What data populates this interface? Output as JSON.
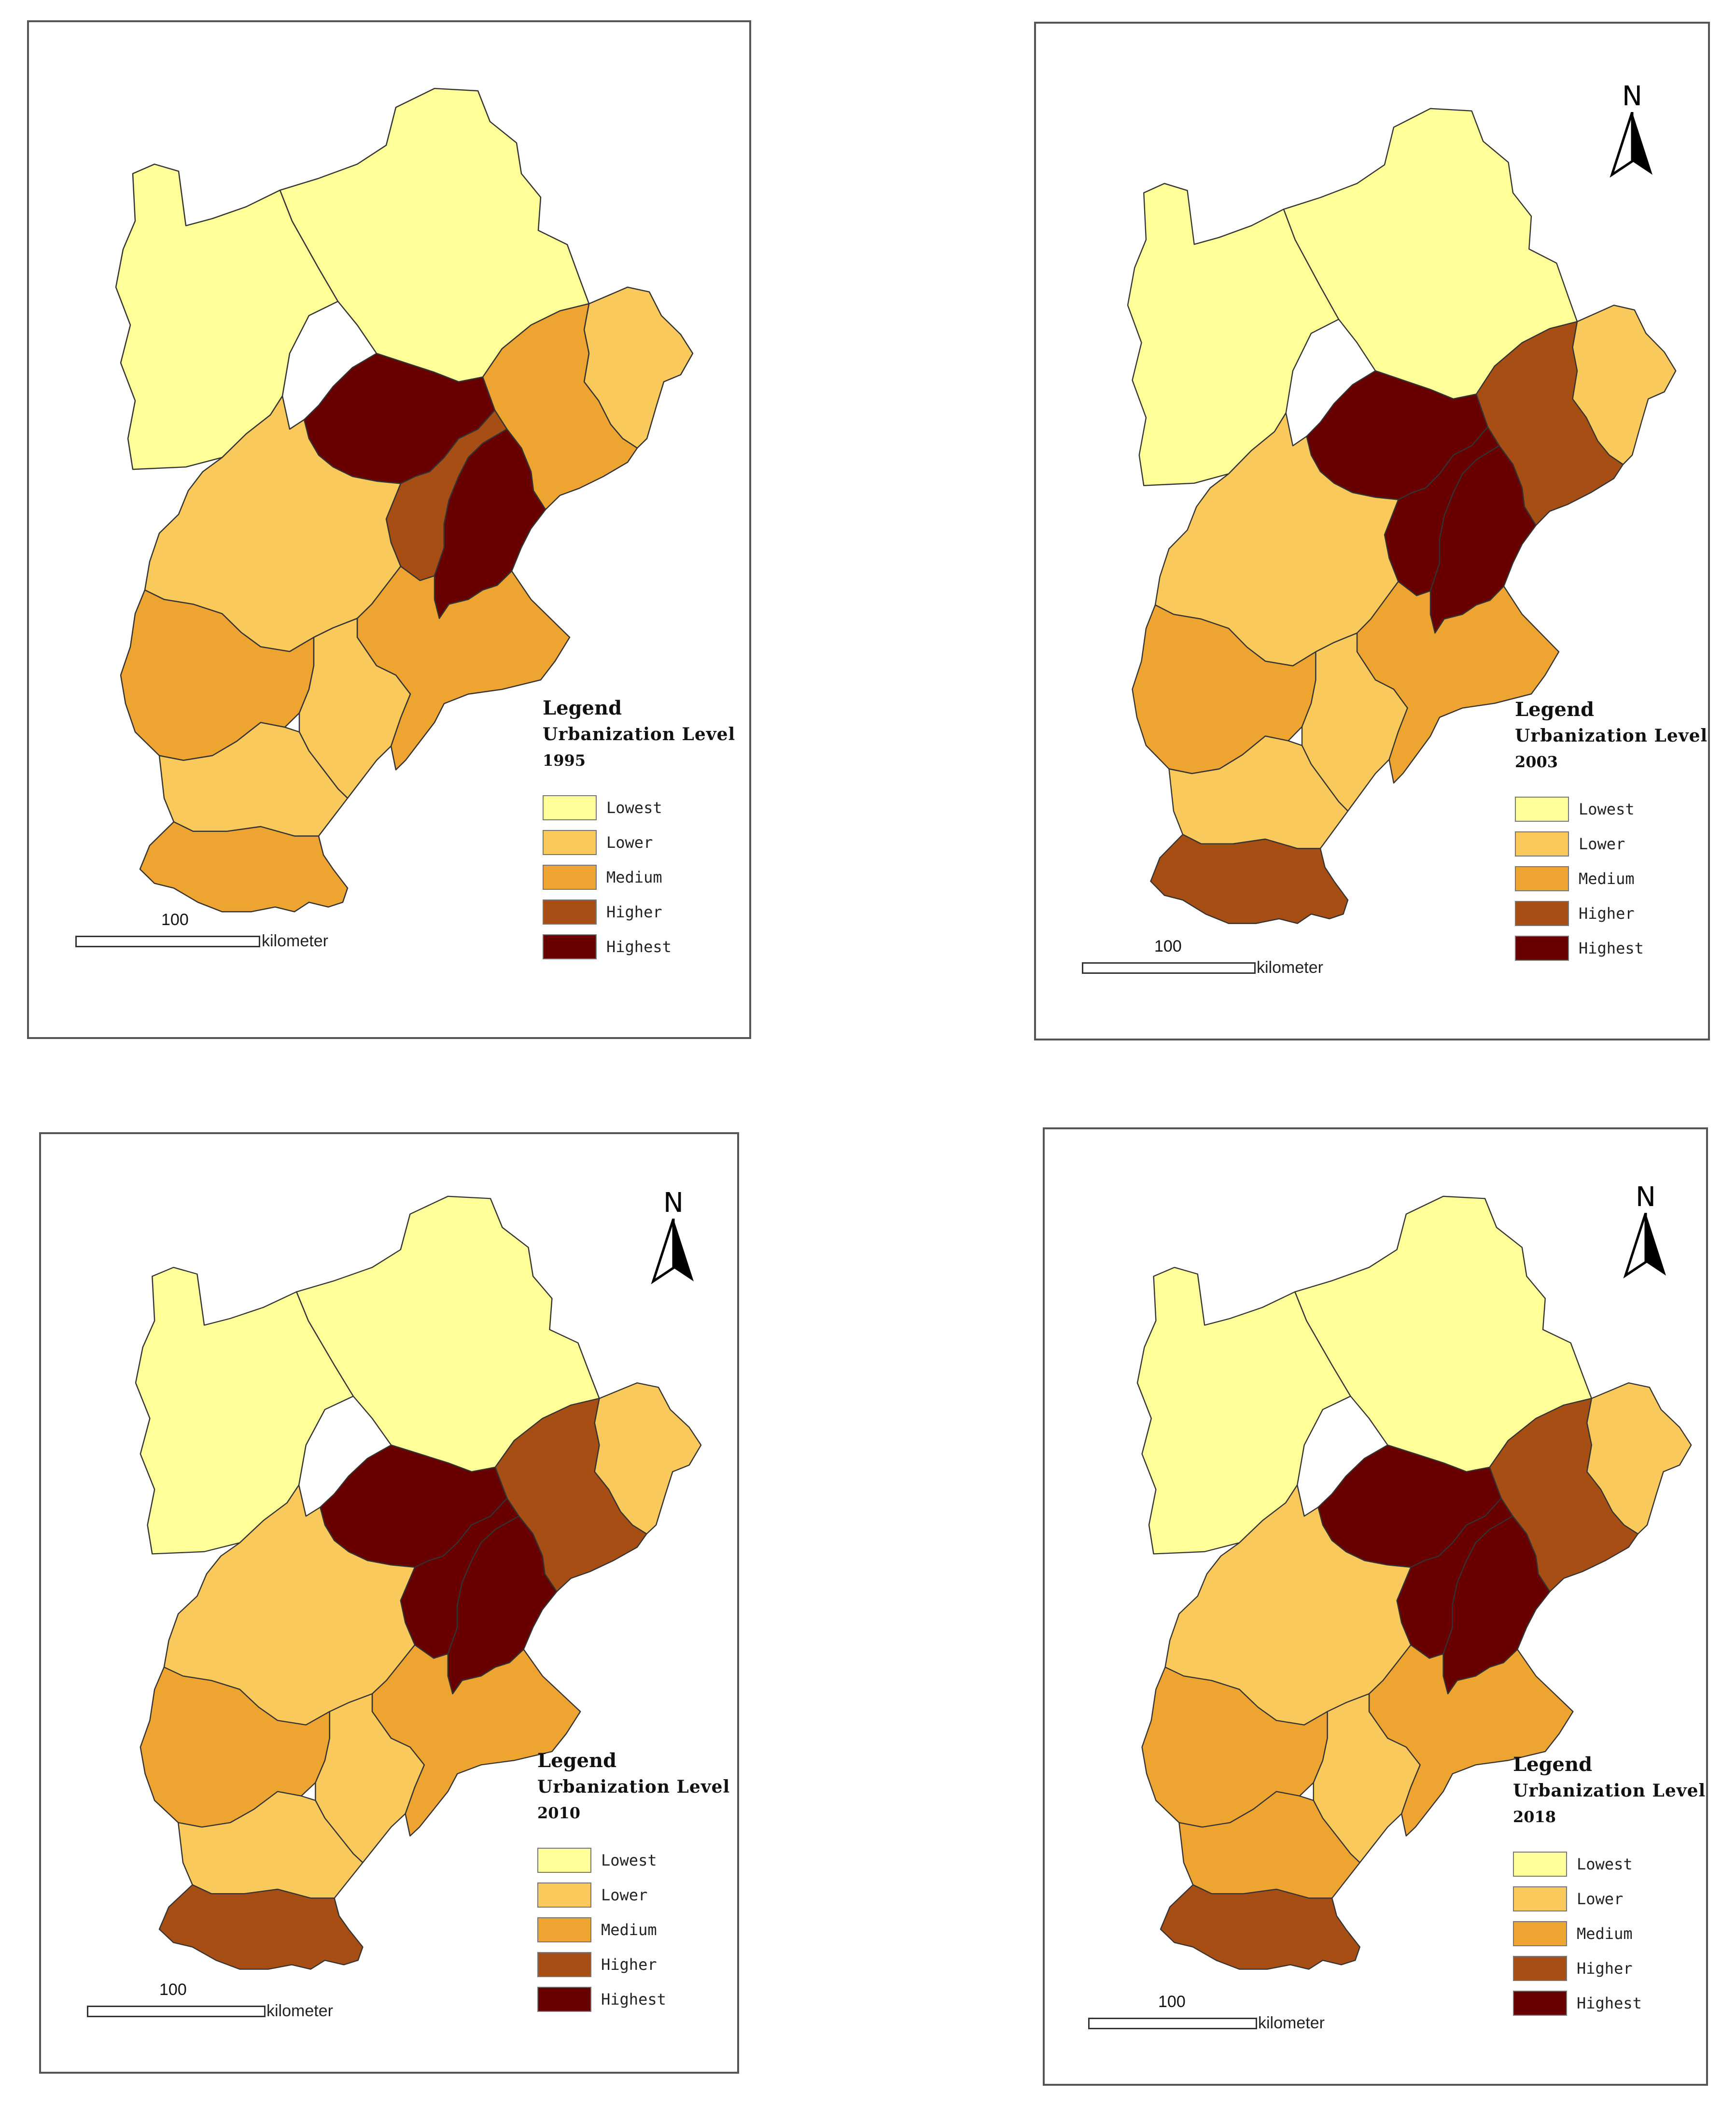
{
  "legend_labels": {
    "title": "Legend",
    "subtitle": "Urbanization Level"
  },
  "classes": [
    {
      "key": "lowest",
      "label": "Lowest",
      "color": "#FFFF99"
    },
    {
      "key": "lower",
      "label": "Lower",
      "color": "#F9C95B"
    },
    {
      "key": "medium",
      "label": "Medium",
      "color": "#EEA431"
    },
    {
      "key": "higher",
      "label": "Higher",
      "color": "#A64E13"
    },
    {
      "key": "highest",
      "label": "Highest",
      "color": "#680000"
    }
  ],
  "scale": {
    "value": "100",
    "unit": "kilometer"
  },
  "north_label": "N",
  "region_classes": {
    "1995": {
      "zhangjiakou": "lowest",
      "chengde": "lowest",
      "qinhuangdao": "lower",
      "tangshan": "medium",
      "beijing": "highest",
      "langfang": "higher",
      "tianjin": "highest",
      "baoding": "lower",
      "cangzhou": "medium",
      "shijiazhuang": "medium",
      "hengshui": "lower",
      "xingtai": "lower",
      "handan": "medium"
    },
    "2003": {
      "zhangjiakou": "lowest",
      "chengde": "lowest",
      "qinhuangdao": "lower",
      "tangshan": "higher",
      "beijing": "highest",
      "langfang": "highest",
      "tianjin": "highest",
      "baoding": "lower",
      "cangzhou": "medium",
      "shijiazhuang": "medium",
      "hengshui": "lower",
      "xingtai": "lower",
      "handan": "higher"
    },
    "2010": {
      "zhangjiakou": "lowest",
      "chengde": "lowest",
      "qinhuangdao": "lower",
      "tangshan": "higher",
      "beijing": "highest",
      "langfang": "highest",
      "tianjin": "highest",
      "baoding": "lower",
      "cangzhou": "medium",
      "shijiazhuang": "medium",
      "hengshui": "lower",
      "xingtai": "lower",
      "handan": "higher"
    },
    "2018": {
      "zhangjiakou": "lowest",
      "chengde": "lowest",
      "qinhuangdao": "lower",
      "tangshan": "higher",
      "beijing": "highest",
      "langfang": "highest",
      "tianjin": "highest",
      "baoding": "lower",
      "cangzhou": "medium",
      "shijiazhuang": "medium",
      "hengshui": "lower",
      "xingtai": "medium",
      "handan": "higher"
    }
  },
  "panels": [
    {
      "year": "1995",
      "has_north_arrow": false
    },
    {
      "year": "2003",
      "has_north_arrow": true
    },
    {
      "year": "2010",
      "has_north_arrow": true
    },
    {
      "year": "2018",
      "has_north_arrow": true
    }
  ]
}
